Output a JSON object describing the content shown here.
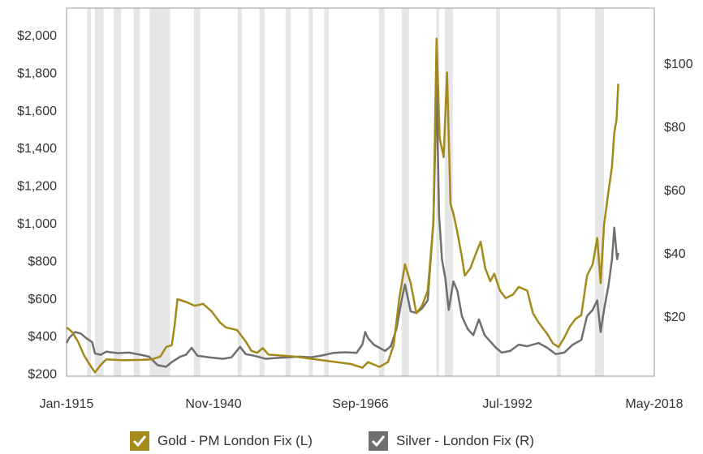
{
  "chart_data": {
    "type": "line",
    "x_axis": {
      "tick_labels": [
        "Jan-1915",
        "Nov-1940",
        "Sep-1966",
        "Jul-1992",
        "May-2018"
      ],
      "range": [
        "1915-01",
        "2018-05"
      ]
    },
    "y_left": {
      "tick_labels": [
        "$200",
        "$400",
        "$600",
        "$800",
        "$1,000",
        "$1,200",
        "$1,400",
        "$1,600",
        "$1,800",
        "$2,000"
      ],
      "range": [
        0,
        2000
      ]
    },
    "y_right": {
      "tick_labels": [
        "$20",
        "$40",
        "$60",
        "$80",
        "$100"
      ],
      "range": [
        0,
        100
      ]
    },
    "grid": "vertical shaded bands",
    "legend_position": "bottom",
    "shaded_bands_years": [
      [
        1918.6,
        1919.3
      ],
      [
        1920.0,
        1921.5
      ],
      [
        1923.3,
        1924.6
      ],
      [
        1926.8,
        1927.9
      ],
      [
        1929.6,
        1933.2
      ],
      [
        1937.4,
        1938.5
      ],
      [
        1945.1,
        1945.8
      ],
      [
        1948.9,
        1949.8
      ],
      [
        1953.5,
        1954.4
      ],
      [
        1957.6,
        1958.3
      ],
      [
        1960.3,
        1961.1
      ],
      [
        1969.9,
        1970.9
      ],
      [
        1973.9,
        1975.2
      ],
      [
        1980.0,
        1980.5
      ],
      [
        1981.5,
        1982.9
      ],
      [
        1990.5,
        1991.2
      ],
      [
        2001.2,
        2001.9
      ],
      [
        2007.9,
        2009.5
      ]
    ],
    "series": [
      {
        "name": "Gold - PM London Fix (L)",
        "axis": "left",
        "color": "#a38a1a",
        "points": [
          [
            1915.0,
            445
          ],
          [
            1916.0,
            420
          ],
          [
            1917.0,
            370
          ],
          [
            1918.0,
            300
          ],
          [
            1919.0,
            250
          ],
          [
            1920.0,
            205
          ],
          [
            1921.0,
            245
          ],
          [
            1922.0,
            275
          ],
          [
            1925.0,
            270
          ],
          [
            1928.0,
            272
          ],
          [
            1930.0,
            275
          ],
          [
            1931.5,
            290
          ],
          [
            1932.5,
            340
          ],
          [
            1933.5,
            350
          ],
          [
            1934.0,
            455
          ],
          [
            1934.5,
            595
          ],
          [
            1936.0,
            580
          ],
          [
            1937.5,
            560
          ],
          [
            1939.0,
            570
          ],
          [
            1940.5,
            530
          ],
          [
            1942.0,
            470
          ],
          [
            1943.0,
            445
          ],
          [
            1945.0,
            430
          ],
          [
            1946.5,
            370
          ],
          [
            1947.5,
            320
          ],
          [
            1948.5,
            310
          ],
          [
            1949.5,
            335
          ],
          [
            1950.5,
            300
          ],
          [
            1955.0,
            290
          ],
          [
            1960.0,
            270
          ],
          [
            1965.0,
            250
          ],
          [
            1967.0,
            230
          ],
          [
            1968.0,
            260
          ],
          [
            1970.0,
            235
          ],
          [
            1971.5,
            260
          ],
          [
            1972.5,
            350
          ],
          [
            1973.5,
            600
          ],
          [
            1974.5,
            780
          ],
          [
            1975.5,
            680
          ],
          [
            1976.5,
            520
          ],
          [
            1977.5,
            560
          ],
          [
            1978.5,
            640
          ],
          [
            1979.5,
            1000
          ],
          [
            1980.05,
            1980
          ],
          [
            1980.6,
            1450
          ],
          [
            1981.3,
            1350
          ],
          [
            1981.9,
            1800
          ],
          [
            1982.5,
            1100
          ],
          [
            1983.0,
            1050
          ],
          [
            1983.7,
            950
          ],
          [
            1984.5,
            820
          ],
          [
            1985.0,
            720
          ],
          [
            1986.0,
            760
          ],
          [
            1987.0,
            840
          ],
          [
            1987.8,
            900
          ],
          [
            1988.6,
            760
          ],
          [
            1989.5,
            690
          ],
          [
            1990.2,
            730
          ],
          [
            1991.2,
            640
          ],
          [
            1992.2,
            600
          ],
          [
            1993.5,
            620
          ],
          [
            1994.5,
            660
          ],
          [
            1996.0,
            640
          ],
          [
            1997.0,
            520
          ],
          [
            1998.0,
            470
          ],
          [
            1999.5,
            410
          ],
          [
            2000.5,
            360
          ],
          [
            2001.5,
            340
          ],
          [
            2002.5,
            390
          ],
          [
            2003.5,
            450
          ],
          [
            2004.5,
            490
          ],
          [
            2005.5,
            510
          ],
          [
            2006.5,
            720
          ],
          [
            2007.5,
            780
          ],
          [
            2008.3,
            920
          ],
          [
            2008.9,
            680
          ],
          [
            2009.5,
            990
          ],
          [
            2010.2,
            1150
          ],
          [
            2010.9,
            1300
          ],
          [
            2011.3,
            1480
          ],
          [
            2011.7,
            1550
          ],
          [
            2012.0,
            1740
          ]
        ]
      },
      {
        "name": "Silver - London Fix (R)",
        "axis": "right",
        "color": "#6f6f6f",
        "points": [
          [
            1915.0,
            11.5
          ],
          [
            1915.5,
            13.2
          ],
          [
            1916.5,
            15.0
          ],
          [
            1917.5,
            14.5
          ],
          [
            1918.5,
            13.0
          ],
          [
            1919.5,
            11.8
          ],
          [
            1920.0,
            8.2
          ],
          [
            1921.0,
            7.8
          ],
          [
            1922.0,
            8.8
          ],
          [
            1924.0,
            8.3
          ],
          [
            1926.0,
            8.5
          ],
          [
            1928.0,
            7.8
          ],
          [
            1929.5,
            7.2
          ],
          [
            1931.0,
            4.5
          ],
          [
            1932.5,
            4.0
          ],
          [
            1933.5,
            5.5
          ],
          [
            1935.0,
            7.2
          ],
          [
            1936.0,
            7.8
          ],
          [
            1937.0,
            10.0
          ],
          [
            1938.0,
            7.5
          ],
          [
            1940.0,
            7.0
          ],
          [
            1942.5,
            6.5
          ],
          [
            1944.0,
            7.0
          ],
          [
            1945.5,
            10.3
          ],
          [
            1946.5,
            8.0
          ],
          [
            1948.0,
            7.5
          ],
          [
            1950.0,
            6.5
          ],
          [
            1952.0,
            6.8
          ],
          [
            1954.0,
            7.0
          ],
          [
            1956.0,
            7.2
          ],
          [
            1958.0,
            7.0
          ],
          [
            1960.0,
            7.6
          ],
          [
            1962.0,
            8.4
          ],
          [
            1964.0,
            8.6
          ],
          [
            1966.0,
            8.4
          ],
          [
            1967.0,
            11.0
          ],
          [
            1967.5,
            15.0
          ],
          [
            1968.0,
            13.0
          ],
          [
            1969.0,
            11.0
          ],
          [
            1970.0,
            10.0
          ],
          [
            1971.0,
            9.0
          ],
          [
            1972.0,
            10.5
          ],
          [
            1973.0,
            16.0
          ],
          [
            1974.0,
            26.0
          ],
          [
            1974.5,
            30.0
          ],
          [
            1975.5,
            21.5
          ],
          [
            1976.5,
            21.0
          ],
          [
            1977.5,
            22.5
          ],
          [
            1978.5,
            25.0
          ],
          [
            1979.5,
            50.0
          ],
          [
            1980.05,
            93.0
          ],
          [
            1980.5,
            52.0
          ],
          [
            1981.0,
            38.0
          ],
          [
            1981.6,
            32.0
          ],
          [
            1982.2,
            22.0
          ],
          [
            1983.0,
            31.0
          ],
          [
            1983.7,
            28.0
          ],
          [
            1984.5,
            20.0
          ],
          [
            1985.5,
            16.0
          ],
          [
            1986.5,
            14.0
          ],
          [
            1987.5,
            19.0
          ],
          [
            1988.5,
            14.0
          ],
          [
            1989.5,
            12.0
          ],
          [
            1990.5,
            10.0
          ],
          [
            1991.5,
            8.5
          ],
          [
            1993.0,
            9.0
          ],
          [
            1994.5,
            11.0
          ],
          [
            1996.0,
            10.5
          ],
          [
            1998.0,
            11.5
          ],
          [
            1999.5,
            10.0
          ],
          [
            2001.0,
            8.0
          ],
          [
            2002.5,
            8.5
          ],
          [
            2004.0,
            11.0
          ],
          [
            2005.5,
            12.5
          ],
          [
            2006.5,
            20.0
          ],
          [
            2007.5,
            22.0
          ],
          [
            2008.3,
            25.0
          ],
          [
            2008.9,
            15.0
          ],
          [
            2009.5,
            22.0
          ],
          [
            2010.3,
            30.0
          ],
          [
            2010.9,
            38.0
          ],
          [
            2011.3,
            48.0
          ],
          [
            2011.8,
            38.0
          ],
          [
            2012.0,
            40.0
          ]
        ]
      }
    ]
  },
  "legend": {
    "gold_label": "Gold - PM London Fix (L)",
    "silver_label": "Silver - London Fix (R)",
    "gold_color": "#a38a1a",
    "silver_color": "#6f6f6f",
    "icon": "checkbox-check-icon"
  }
}
